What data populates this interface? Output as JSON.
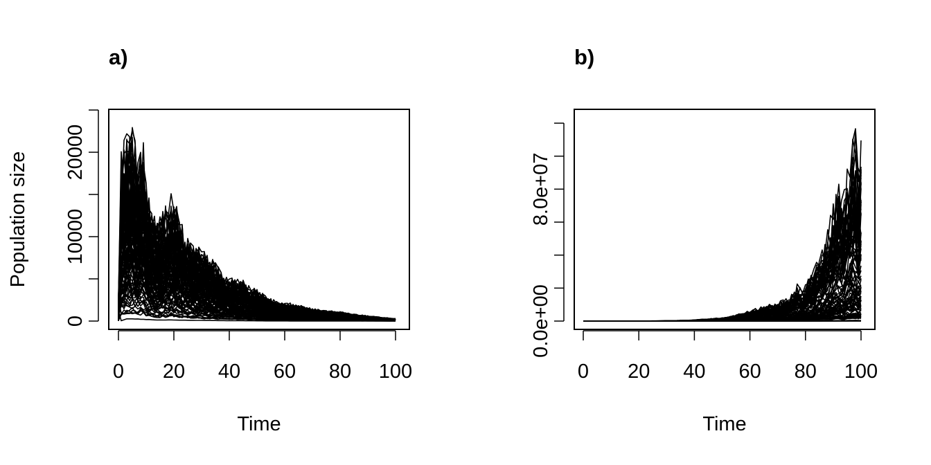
{
  "chart_data": [
    {
      "panel": "a",
      "title": "a)",
      "type": "line",
      "xlabel": "Time",
      "ylabel": "Population size",
      "xlim": [
        1,
        101
      ],
      "ylim": [
        0,
        25000
      ],
      "x_ticks": [
        0,
        20,
        40,
        60,
        80,
        100
      ],
      "y_ticks": [
        0,
        5000,
        10000,
        15000,
        20000,
        25000
      ],
      "y_tick_labels": [
        "0",
        "",
        "10000",
        "",
        "20000",
        ""
      ],
      "grid": false,
      "legend": "none",
      "series_count_estimate": 100,
      "envelope": {
        "x": [
          1,
          2,
          4,
          6,
          8,
          10,
          12,
          15,
          18,
          20,
          25,
          30,
          35,
          40,
          45,
          50,
          55,
          60,
          65,
          70,
          75,
          80,
          85,
          90,
          95,
          101
        ],
        "y_max": [
          3000,
          21000,
          24500,
          24000,
          20500,
          22500,
          15000,
          12000,
          14000,
          16000,
          10500,
          9000,
          7700,
          5400,
          5200,
          4200,
          3000,
          2300,
          2100,
          1600,
          1300,
          1200,
          900,
          700,
          500,
          300
        ],
        "y_min": [
          0,
          0,
          200,
          200,
          200,
          150,
          150,
          100,
          100,
          100,
          80,
          60,
          50,
          40,
          30,
          20,
          10,
          10,
          5,
          5,
          5,
          0,
          0,
          0,
          0,
          0
        ]
      }
    },
    {
      "panel": "b",
      "title": "b)",
      "type": "line",
      "xlabel": "Time",
      "ylabel": "",
      "xlim": [
        1,
        101
      ],
      "ylim": [
        0,
        120000000
      ],
      "x_ticks": [
        0,
        20,
        40,
        60,
        80,
        100
      ],
      "y_ticks": [
        0,
        20000000,
        40000000,
        60000000,
        80000000,
        100000000,
        120000000
      ],
      "y_tick_labels": [
        "0.0e+00",
        "",
        "",
        "",
        "8.0e+07",
        "",
        ""
      ],
      "grid": false,
      "legend": "none",
      "series_count_estimate": 100,
      "envelope": {
        "x": [
          1,
          10,
          20,
          30,
          40,
          50,
          55,
          60,
          65,
          70,
          75,
          78,
          80,
          83,
          85,
          88,
          90,
          93,
          95,
          97,
          99,
          100,
          101
        ],
        "y_max": [
          0,
          0,
          50000,
          150000,
          600000,
          2000000,
          3500000,
          6000000,
          9000000,
          11000000,
          15000000,
          23000000,
          20000000,
          30000000,
          40000000,
          55000000,
          65000000,
          90000000,
          85000000,
          110000000,
          122000000,
          100000000,
          124000000
        ],
        "y_min": [
          0,
          0,
          0,
          0,
          0,
          0,
          0,
          0,
          0,
          0,
          0,
          0,
          0,
          0,
          0,
          0,
          0,
          0,
          0,
          0,
          0,
          0,
          0
        ]
      }
    }
  ]
}
